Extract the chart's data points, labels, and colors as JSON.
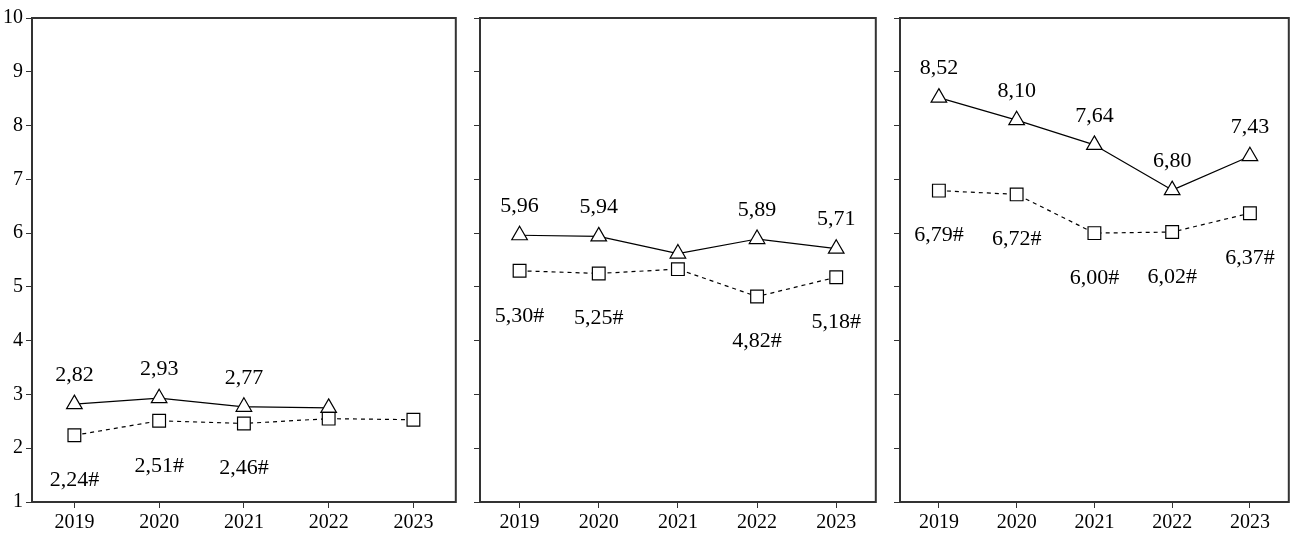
{
  "chart_data": [
    {
      "type": "line",
      "categories": [
        "2019",
        "2020",
        "2021",
        "2022",
        "2023"
      ],
      "ylim": [
        1,
        10
      ],
      "yticks": [
        1,
        2,
        3,
        4,
        5,
        6,
        7,
        8,
        9,
        10
      ],
      "grid": false,
      "legend": false,
      "series": [
        {
          "color": "#000000",
          "marker": "triangle",
          "line_style": "solid",
          "values": [
            2.82,
            2.93,
            2.77,
            2.75,
            null
          ],
          "value_labels": [
            "2,82",
            "2,93",
            "2,77",
            null,
            null
          ]
        },
        {
          "color": "#000000",
          "marker": "square",
          "line_style": "dashed",
          "values": [
            2.24,
            2.51,
            2.46,
            2.55,
            2.53
          ],
          "value_labels": [
            "2,24#",
            "2,51#",
            "2,46#",
            null,
            null
          ]
        }
      ]
    },
    {
      "type": "line",
      "categories": [
        "2019",
        "2020",
        "2021",
        "2022",
        "2023"
      ],
      "ylim": [
        1,
        10
      ],
      "yticks": [
        1,
        2,
        3,
        4,
        5,
        6,
        7,
        8,
        9,
        10
      ],
      "tick_labels": "x",
      "grid": false,
      "legend": false,
      "series": [
        {
          "color": "#000000",
          "marker": "triangle",
          "line_style": "solid",
          "values": [
            5.96,
            5.94,
            5.62,
            5.89,
            5.71
          ],
          "value_labels": [
            "5,96",
            "5,94",
            null,
            "5,89",
            "5,71"
          ]
        },
        {
          "color": "#000000",
          "marker": "square",
          "line_style": "dashed",
          "values": [
            5.3,
            5.25,
            5.33,
            4.82,
            5.18
          ],
          "value_labels": [
            "5,30#",
            "5,25#",
            null,
            "4,82#",
            "5,18#"
          ]
        }
      ]
    },
    {
      "type": "line",
      "categories": [
        "2019",
        "2020",
        "2021",
        "2022",
        "2023"
      ],
      "ylim": [
        1,
        10
      ],
      "yticks": [
        1,
        2,
        3,
        4,
        5,
        6,
        7,
        8,
        9,
        10
      ],
      "tick_labels": "x",
      "grid": false,
      "legend": false,
      "series": [
        {
          "color": "#000000",
          "marker": "triangle",
          "line_style": "solid",
          "values": [
            8.52,
            8.1,
            7.64,
            6.8,
            7.43
          ],
          "value_labels": [
            "8,52",
            "8,10",
            "7,64",
            "6,80",
            "7,43"
          ]
        },
        {
          "color": "#000000",
          "marker": "square",
          "line_style": "dashed",
          "values": [
            6.79,
            6.72,
            6.0,
            6.02,
            6.37
          ],
          "value_labels": [
            "6,79#",
            "6,72#",
            "6,00#",
            "6,02#",
            "6,37#"
          ]
        }
      ]
    }
  ]
}
